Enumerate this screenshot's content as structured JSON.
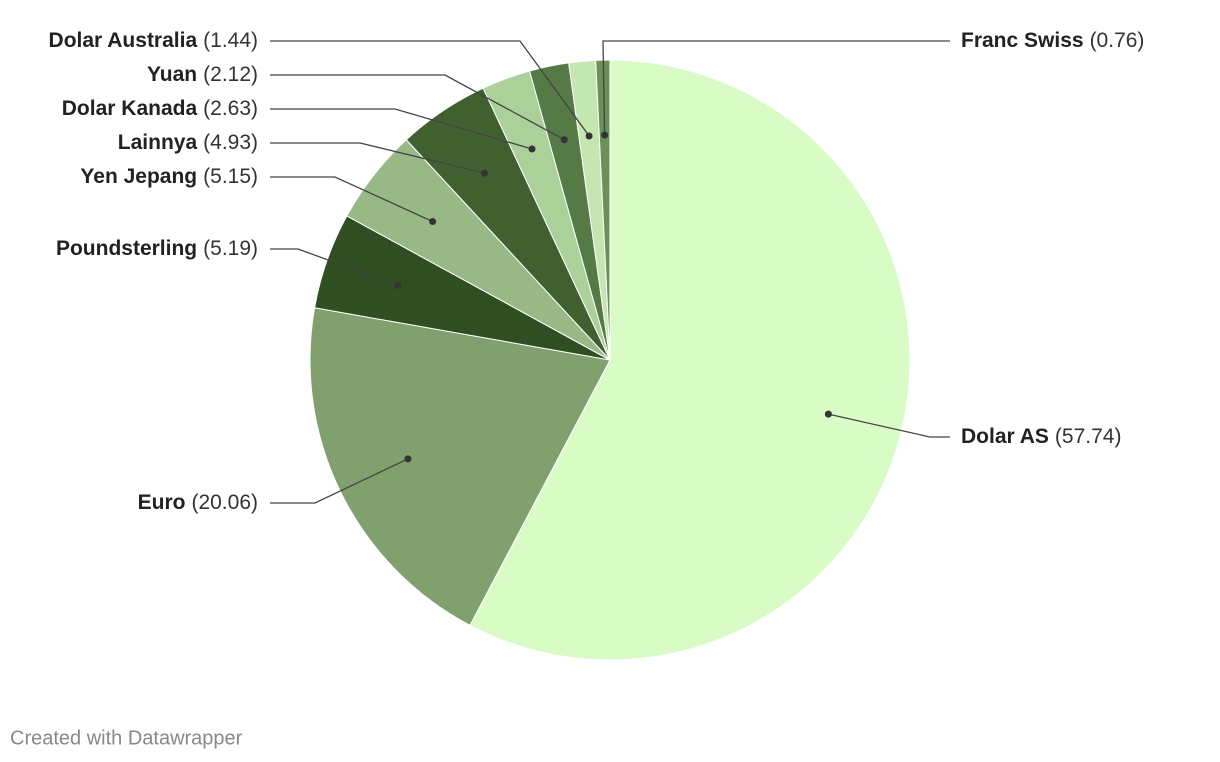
{
  "chart_data": {
    "type": "pie",
    "categories": [
      "Dolar AS",
      "Euro",
      "Poundsterling",
      "Yen Jepang",
      "Lainnya",
      "Dolar Kanada",
      "Yuan",
      "Dolar Australia",
      "Franc Swiss"
    ],
    "values": [
      57.74,
      20.06,
      5.19,
      5.15,
      4.93,
      2.63,
      2.12,
      1.44,
      0.76
    ],
    "value_labels": [
      "(57.74)",
      "(20.06)",
      "(5.19)",
      "(5.15)",
      "(4.93)",
      "(2.63)",
      "(2.12)",
      "(1.44)",
      "(0.76)"
    ],
    "colors": [
      "#d9fcc6",
      "#80a06e",
      "#2f4f21",
      "#98b886",
      "#406030",
      "#acd09a",
      "#557a45",
      "#c4e6b1",
      "#6b9058"
    ],
    "footer": "Created with Datawrapper"
  }
}
